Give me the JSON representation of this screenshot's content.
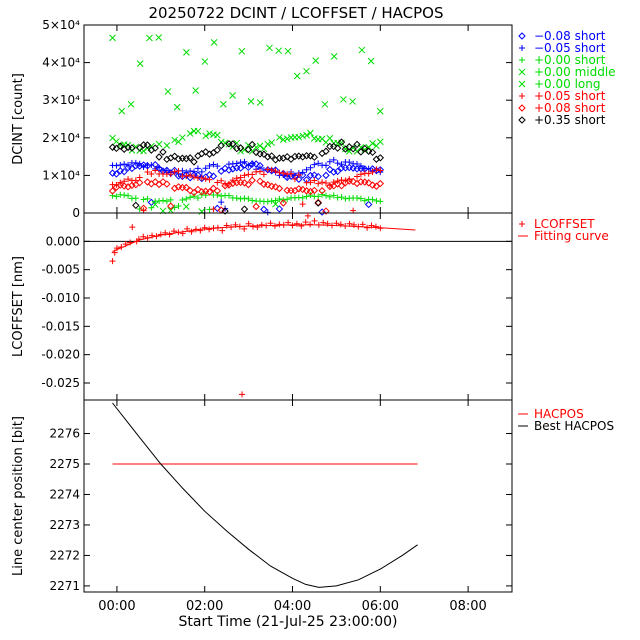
{
  "title": "20250722 DCINT / LCOFFSET / HACPOS",
  "xlabel": "Start Time (21-Jul-25 23:00:00)",
  "x_ticks": [
    "00:00",
    "02:00",
    "04:00",
    "06:00",
    "08:00"
  ],
  "chart_data": [
    {
      "type": "scatter",
      "panel": "DCINT",
      "ylabel": "DCINT [count]",
      "xlim_hours": [
        -0.75,
        9.0
      ],
      "ylim": [
        0,
        50000
      ],
      "y_ticks": [
        {
          "value": 0,
          "label": "0"
        },
        {
          "value": 10000,
          "label": "1×10⁴"
        },
        {
          "value": 20000,
          "label": "2×10⁴"
        },
        {
          "value": 30000,
          "label": "3×10⁴"
        },
        {
          "value": 40000,
          "label": "4×10⁴"
        },
        {
          "value": 50000,
          "label": "5×10⁴"
        }
      ],
      "legend_position": "right",
      "series": [
        {
          "name": "−0.08 short",
          "symbol": "diamond",
          "color": "#0000ff",
          "level": 11000,
          "amp": 1500
        },
        {
          "name": "−0.05 short",
          "symbol": "plus",
          "color": "#0000ff",
          "level": 12000,
          "amp": 1500
        },
        {
          "name": "+0.00 short",
          "symbol": "plus",
          "color": "#00dd00",
          "level": 4000,
          "amp": 700
        },
        {
          "name": "+0.00 middle",
          "symbol": "x",
          "color": "#00dd00",
          "level": 19000,
          "amp": 2000
        },
        {
          "name": "+0.00 long",
          "symbol": "x",
          "color": "#00dd00",
          "level": 37000,
          "amp": 7000
        },
        {
          "name": "+0.05 short",
          "symbol": "plus",
          "color": "#ff0000",
          "level": 9500,
          "amp": 1500
        },
        {
          "name": "+0.08 short",
          "symbol": "diamond",
          "color": "#ff0000",
          "level": 7000,
          "amp": 1200
        },
        {
          "name": "+0.35 short",
          "symbol": "diamond",
          "color": "#000000",
          "level": 16000,
          "amp": 2000
        }
      ],
      "time_range_hours": [
        -0.1,
        6.0
      ]
    },
    {
      "type": "scatter",
      "panel": "LCOFFSET",
      "ylabel": "LCOFFSET [nm]",
      "ylim": [
        -0.028,
        0.005
      ],
      "y_ticks": [
        {
          "value": 0.0,
          "label": "0.000"
        },
        {
          "value": -0.005,
          "label": "-0.005"
        },
        {
          "value": -0.01,
          "label": "-0.010"
        },
        {
          "value": -0.015,
          "label": "-0.015"
        },
        {
          "value": -0.02,
          "label": "-0.020"
        },
        {
          "value": -0.025,
          "label": "-0.025"
        }
      ],
      "reference_line": 0.0,
      "legend_position": "right",
      "series": [
        {
          "name": "LCOFFSET",
          "symbol": "plus",
          "color": "#ff0000",
          "points": [
            [
              -0.1,
              -0.0035
            ],
            [
              -0.05,
              -0.002
            ],
            [
              0.0,
              -0.0012
            ],
            [
              0.1,
              -0.001
            ],
            [
              0.2,
              -0.0005
            ],
            [
              0.3,
              -0.0002
            ],
            [
              0.35,
              0.0025
            ],
            [
              0.45,
              0.0
            ],
            [
              0.5,
              0.0004
            ],
            [
              0.6,
              0.0008
            ],
            [
              0.7,
              0.0006
            ],
            [
              0.8,
              0.001
            ],
            [
              0.9,
              0.0009
            ],
            [
              1.0,
              0.0012
            ],
            [
              1.1,
              0.0015
            ],
            [
              1.2,
              0.0012
            ],
            [
              1.3,
              0.0018
            ],
            [
              1.4,
              0.0016
            ],
            [
              1.5,
              0.0014
            ],
            [
              1.6,
              0.0022
            ],
            [
              1.7,
              0.0017
            ],
            [
              1.8,
              0.0021
            ],
            [
              1.9,
              0.0019
            ],
            [
              2.0,
              0.0024
            ],
            [
              2.1,
              0.0021
            ],
            [
              2.2,
              0.0023
            ],
            [
              2.3,
              0.0024
            ],
            [
              2.4,
              0.0019
            ],
            [
              2.5,
              0.0028
            ],
            [
              2.6,
              0.0025
            ],
            [
              2.7,
              0.0029
            ],
            [
              2.8,
              0.0026
            ],
            [
              2.85,
              -0.027
            ],
            [
              2.9,
              0.0022
            ],
            [
              3.0,
              0.0031
            ],
            [
              3.1,
              0.0026
            ],
            [
              3.2,
              0.0025
            ],
            [
              3.3,
              0.0029
            ],
            [
              3.4,
              0.0028
            ],
            [
              3.5,
              0.0032
            ],
            [
              3.6,
              0.0027
            ],
            [
              3.7,
              0.003
            ],
            [
              3.8,
              0.0029
            ],
            [
              3.9,
              0.0033
            ],
            [
              4.0,
              0.0028
            ],
            [
              4.1,
              0.0031
            ],
            [
              4.2,
              0.0027
            ],
            [
              4.3,
              0.0034
            ],
            [
              4.35,
              0.0045
            ],
            [
              4.4,
              0.003
            ],
            [
              4.5,
              0.0036
            ],
            [
              4.6,
              0.0029
            ],
            [
              4.7,
              0.0033
            ],
            [
              4.8,
              0.0031
            ],
            [
              4.9,
              0.0028
            ],
            [
              5.0,
              0.0032
            ],
            [
              5.1,
              0.003
            ],
            [
              5.2,
              0.0027
            ],
            [
              5.3,
              0.0031
            ],
            [
              5.4,
              0.0029
            ],
            [
              5.5,
              0.0026
            ],
            [
              5.6,
              0.003
            ],
            [
              5.7,
              0.0024
            ],
            [
              5.8,
              0.0028
            ],
            [
              5.9,
              0.0026
            ],
            [
              6.0,
              0.0023
            ]
          ]
        },
        {
          "name": "Fitting curve",
          "symbol": "line",
          "color": "#ff0000",
          "points": [
            [
              -0.1,
              -0.0018
            ],
            [
              0.5,
              0.0002
            ],
            [
              1.0,
              0.0011
            ],
            [
              1.5,
              0.0017
            ],
            [
              2.0,
              0.0022
            ],
            [
              2.5,
              0.0025
            ],
            [
              3.0,
              0.0027
            ],
            [
              3.5,
              0.0028
            ],
            [
              4.0,
              0.0029
            ],
            [
              4.5,
              0.0029
            ],
            [
              5.0,
              0.0028
            ],
            [
              5.5,
              0.0026
            ],
            [
              6.0,
              0.0024
            ],
            [
              6.8,
              0.002
            ]
          ]
        }
      ]
    },
    {
      "type": "line",
      "panel": "HACPOS",
      "ylabel": "Line center position [bit]",
      "ylim": [
        2270.8,
        2277.1
      ],
      "y_ticks": [
        {
          "value": 2271,
          "label": "2271"
        },
        {
          "value": 2272,
          "label": "2272"
        },
        {
          "value": 2273,
          "label": "2273"
        },
        {
          "value": 2274,
          "label": "2274"
        },
        {
          "value": 2275,
          "label": "2275"
        },
        {
          "value": 2276,
          "label": "2276"
        }
      ],
      "legend_position": "right",
      "series": [
        {
          "name": "HACPOS",
          "color": "#ff0000",
          "points": [
            [
              -0.1,
              2275.0
            ],
            [
              6.85,
              2275.0
            ]
          ]
        },
        {
          "name": "Best HACPOS",
          "color": "#000000",
          "points": [
            [
              -0.1,
              2277.0
            ],
            [
              0.5,
              2275.9
            ],
            [
              1.0,
              2275.0
            ],
            [
              1.5,
              2274.2
            ],
            [
              2.0,
              2273.45
            ],
            [
              2.5,
              2272.8
            ],
            [
              3.0,
              2272.2
            ],
            [
              3.5,
              2271.65
            ],
            [
              4.0,
              2271.25
            ],
            [
              4.3,
              2271.05
            ],
            [
              4.6,
              2270.95
            ],
            [
              5.0,
              2271.0
            ],
            [
              5.5,
              2271.2
            ],
            [
              6.0,
              2271.55
            ],
            [
              6.5,
              2272.0
            ],
            [
              6.85,
              2272.35
            ]
          ]
        }
      ]
    }
  ]
}
